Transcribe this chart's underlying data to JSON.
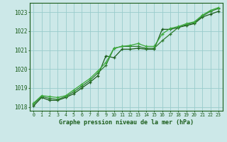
{
  "title": "Graphe pression niveau de la mer (hPa)",
  "background_color": "#cce8e8",
  "grid_color": "#99cccc",
  "line_color1": "#1a5c1a",
  "line_color2": "#2d7a2d",
  "line_color3": "#3aaa3a",
  "x_min": 0,
  "x_max": 23,
  "y_min": 1017.8,
  "y_max": 1023.5,
  "yticks": [
    1018,
    1019,
    1020,
    1021,
    1022,
    1023
  ],
  "xticks": [
    0,
    1,
    2,
    3,
    4,
    5,
    6,
    7,
    8,
    9,
    10,
    11,
    12,
    13,
    14,
    15,
    16,
    17,
    18,
    19,
    20,
    21,
    22,
    23
  ],
  "series1": [
    1018.05,
    1018.5,
    1018.35,
    1018.35,
    1018.5,
    1018.7,
    1019.0,
    1019.3,
    1019.65,
    1020.7,
    1020.6,
    1021.05,
    1021.05,
    1021.1,
    1021.05,
    1021.05,
    1022.1,
    1022.1,
    1022.2,
    1022.3,
    1022.4,
    1022.75,
    1022.9,
    1023.05
  ],
  "series2": [
    1018.15,
    1018.55,
    1018.45,
    1018.4,
    1018.55,
    1018.8,
    1019.1,
    1019.4,
    1019.8,
    1020.2,
    1021.1,
    1021.2,
    1021.2,
    1021.2,
    1021.1,
    1021.1,
    1021.5,
    1021.85,
    1022.2,
    1022.35,
    1022.45,
    1022.8,
    1023.05,
    1023.2
  ],
  "series3": [
    1018.2,
    1018.6,
    1018.55,
    1018.5,
    1018.6,
    1018.9,
    1019.2,
    1019.5,
    1019.9,
    1020.35,
    1021.1,
    1021.2,
    1021.25,
    1021.35,
    1021.2,
    1021.2,
    1021.85,
    1022.15,
    1022.25,
    1022.4,
    1022.5,
    1022.85,
    1023.1,
    1023.25
  ]
}
